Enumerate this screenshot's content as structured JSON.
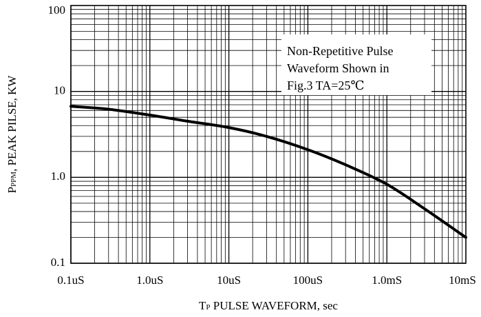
{
  "chart_data": {
    "type": "line",
    "title": "",
    "x_scale": "log",
    "y_scale": "log",
    "xlim": [
      "0.1uS",
      "10mS"
    ],
    "ylim": [
      0.1,
      100
    ],
    "x_tick_labels": [
      "0.1uS",
      "1.0uS",
      "10uS",
      "100uS",
      "1.0mS",
      "10mS"
    ],
    "y_tick_labels": [
      "0.1",
      "1.0",
      "10",
      "100"
    ],
    "xlabel": {
      "main": "T",
      "sub": "P",
      "rest": " PULSE WAVEFORM, sec"
    },
    "ylabel": {
      "main": "P",
      "sub": "PPM",
      "rest": ", PEAK PILSE, KW"
    },
    "annotation_lines": [
      "Non-Repetitive Pulse",
      "Waveform Shown in",
      "Fig.3 TA=25℃"
    ],
    "grid": "on",
    "series": [
      {
        "x_unit": "s",
        "y_unit": "kW",
        "points": [
          [
            1e-07,
            6.7
          ],
          [
            3e-07,
            6.2
          ],
          [
            1e-06,
            5.3
          ],
          [
            3e-06,
            4.5
          ],
          [
            1e-05,
            3.8
          ],
          [
            3e-05,
            3.0
          ],
          [
            0.0001,
            2.1
          ],
          [
            0.0003,
            1.4
          ],
          [
            0.001,
            0.83
          ],
          [
            0.003,
            0.43
          ],
          [
            0.01,
            0.2
          ]
        ]
      }
    ],
    "colors": {
      "line": "#000000",
      "grid": "#000000"
    }
  }
}
